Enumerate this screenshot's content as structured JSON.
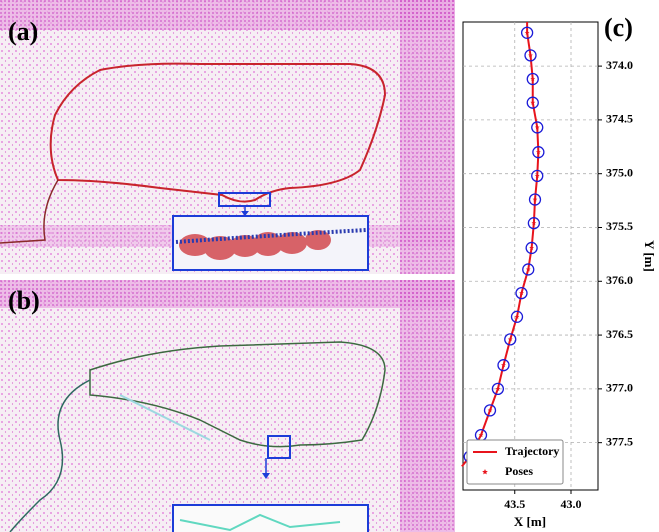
{
  "panels": [
    {
      "label": "(a)"
    },
    {
      "label": "(b)"
    }
  ],
  "chart_data": {
    "type": "line",
    "panel_label": "(c)",
    "x_label": "X [m]",
    "y_label": "Y [m]",
    "xlim": [
      43.96,
      42.76
    ],
    "ylim": [
      377.94,
      373.59
    ],
    "xticks": [
      43.5,
      {
        "value": 43,
        "label": "43.0"
      }
    ],
    "yticks": [
      {
        "value": 374,
        "label": "374.0"
      },
      374.5,
      {
        "value": 375,
        "label": "375.0"
      },
      375.5,
      {
        "value": 376,
        "label": "376.0"
      },
      376.5,
      {
        "value": 377,
        "label": "377.0"
      },
      377.5
    ],
    "grid": true,
    "legend": "lower left",
    "series": [
      {
        "name": "Trajectory",
        "color": "#e8141c",
        "style": "line",
        "x": [
          43.39,
          43.39,
          43.36,
          43.34,
          43.34,
          43.3,
          43.29,
          43.3,
          43.32,
          43.33,
          43.35,
          43.38,
          43.44,
          43.48,
          43.54,
          43.6,
          43.65,
          43.72,
          43.8,
          43.9,
          43.97
        ],
        "y": [
          373.59,
          373.69,
          373.9,
          374.12,
          374.34,
          374.57,
          374.8,
          375.02,
          375.24,
          375.46,
          375.69,
          375.89,
          376.11,
          376.33,
          376.54,
          376.78,
          377.0,
          377.2,
          377.43,
          377.63,
          377.72
        ]
      },
      {
        "name": "Poses",
        "color": "#e8141c",
        "ring_color": "#1c1cd8",
        "style": "markers",
        "x": [
          43.39,
          43.36,
          43.34,
          43.34,
          43.3,
          43.29,
          43.3,
          43.32,
          43.33,
          43.35,
          43.38,
          43.44,
          43.48,
          43.54,
          43.6,
          43.65,
          43.72,
          43.8,
          43.9
        ],
        "y": [
          373.69,
          373.9,
          374.12,
          374.34,
          374.57,
          374.8,
          375.02,
          375.24,
          375.46,
          375.69,
          375.89,
          376.11,
          376.33,
          376.54,
          376.78,
          377.0,
          377.2,
          377.43,
          377.63
        ]
      }
    ]
  }
}
